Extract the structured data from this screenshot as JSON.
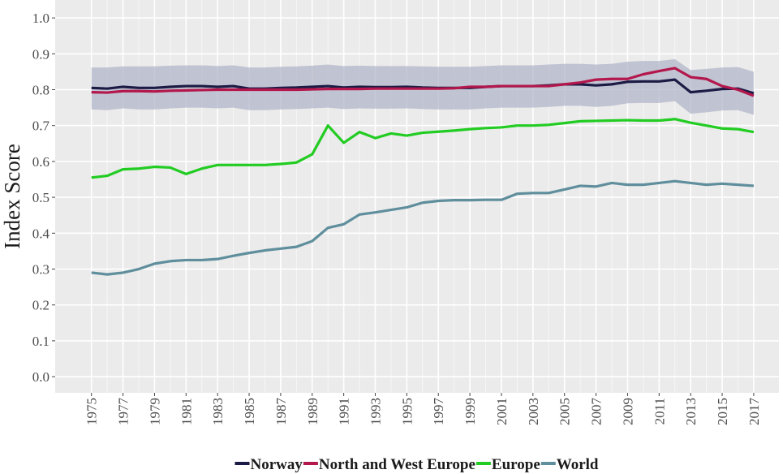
{
  "chart_data": {
    "type": "line",
    "y_label": "Index Score",
    "x": [
      1975,
      1976,
      1977,
      1978,
      1979,
      1980,
      1981,
      1982,
      1983,
      1984,
      1985,
      1986,
      1987,
      1988,
      1989,
      1990,
      1991,
      1992,
      1993,
      1994,
      1995,
      1996,
      1997,
      1998,
      1999,
      2000,
      2001,
      2002,
      2003,
      2004,
      2005,
      2006,
      2007,
      2008,
      2009,
      2010,
      2011,
      2012,
      2013,
      2014,
      2015,
      2016,
      2017
    ],
    "xlim": [
      1972.7,
      2018.6
    ],
    "xticks": [
      1975,
      1977,
      1979,
      1981,
      1983,
      1985,
      1987,
      1989,
      1991,
      1993,
      1995,
      1997,
      1999,
      2001,
      2003,
      2005,
      2007,
      2009,
      2011,
      2013,
      2015,
      2017
    ],
    "ylim": [
      -0.045,
      1.05
    ],
    "yticks": [
      {
        "value": 0,
        "label": "0.0"
      },
      0.1,
      0.2,
      0.3,
      0.4,
      0.5,
      0.6,
      0.7,
      0.8,
      0.9,
      {
        "value": 1,
        "label": "1.0"
      }
    ],
    "grid": true,
    "legend": "bottom",
    "band": {
      "color": "#aeb2c6",
      "upper": [
        0.862,
        0.862,
        0.865,
        0.865,
        0.865,
        0.867,
        0.868,
        0.868,
        0.866,
        0.868,
        0.862,
        0.862,
        0.864,
        0.865,
        0.867,
        0.87,
        0.866,
        0.867,
        0.866,
        0.866,
        0.866,
        0.865,
        0.864,
        0.864,
        0.864,
        0.866,
        0.868,
        0.868,
        0.868,
        0.87,
        0.872,
        0.872,
        0.87,
        0.872,
        0.878,
        0.88,
        0.88,
        0.885,
        0.855,
        0.858,
        0.862,
        0.863,
        0.85
      ],
      "lower": [
        0.745,
        0.743,
        0.748,
        0.745,
        0.745,
        0.748,
        0.75,
        0.75,
        0.748,
        0.75,
        0.743,
        0.743,
        0.745,
        0.746,
        0.748,
        0.75,
        0.746,
        0.748,
        0.747,
        0.747,
        0.748,
        0.746,
        0.745,
        0.745,
        0.745,
        0.748,
        0.75,
        0.75,
        0.75,
        0.752,
        0.755,
        0.755,
        0.752,
        0.755,
        0.762,
        0.763,
        0.763,
        0.768,
        0.733,
        0.737,
        0.742,
        0.743,
        0.73
      ]
    },
    "series": [
      {
        "name": "Norway",
        "color": "#1b1b45",
        "values": [
          0.805,
          0.803,
          0.808,
          0.805,
          0.805,
          0.808,
          0.81,
          0.81,
          0.808,
          0.81,
          0.803,
          0.803,
          0.805,
          0.806,
          0.808,
          0.81,
          0.806,
          0.808,
          0.807,
          0.807,
          0.808,
          0.806,
          0.805,
          0.805,
          0.805,
          0.808,
          0.81,
          0.81,
          0.81,
          0.812,
          0.815,
          0.815,
          0.812,
          0.815,
          0.822,
          0.823,
          0.823,
          0.828,
          0.793,
          0.797,
          0.802,
          0.803,
          0.79
        ]
      },
      {
        "name": "North and West Europe",
        "color": "#b3174c",
        "values": [
          0.793,
          0.792,
          0.796,
          0.796,
          0.795,
          0.797,
          0.798,
          0.799,
          0.8,
          0.8,
          0.8,
          0.8,
          0.8,
          0.8,
          0.801,
          0.802,
          0.802,
          0.802,
          0.803,
          0.803,
          0.803,
          0.803,
          0.803,
          0.804,
          0.808,
          0.808,
          0.81,
          0.81,
          0.81,
          0.81,
          0.815,
          0.82,
          0.828,
          0.83,
          0.83,
          0.843,
          0.852,
          0.86,
          0.835,
          0.83,
          0.81,
          0.8,
          0.783
        ]
      },
      {
        "name": "Europe",
        "color": "#22cc22",
        "values": [
          0.555,
          0.56,
          0.578,
          0.58,
          0.585,
          0.583,
          0.565,
          0.58,
          0.59,
          0.59,
          0.59,
          0.59,
          0.593,
          0.597,
          0.62,
          0.7,
          0.652,
          0.682,
          0.665,
          0.678,
          0.672,
          0.68,
          0.683,
          0.686,
          0.69,
          0.693,
          0.695,
          0.7,
          0.7,
          0.702,
          0.707,
          0.712,
          0.713,
          0.714,
          0.715,
          0.714,
          0.714,
          0.718,
          0.708,
          0.7,
          0.692,
          0.69,
          0.682
        ]
      },
      {
        "name": "World",
        "color": "#5f8e9c",
        "values": [
          0.29,
          0.285,
          0.29,
          0.3,
          0.315,
          0.322,
          0.325,
          0.325,
          0.328,
          0.337,
          0.345,
          0.352,
          0.357,
          0.362,
          0.378,
          0.415,
          0.425,
          0.452,
          0.458,
          0.465,
          0.472,
          0.485,
          0.49,
          0.492,
          0.492,
          0.493,
          0.493,
          0.51,
          0.512,
          0.512,
          0.522,
          0.532,
          0.53,
          0.54,
          0.535,
          0.535,
          0.54,
          0.545,
          0.54,
          0.535,
          0.538,
          0.535,
          0.532
        ]
      }
    ]
  }
}
